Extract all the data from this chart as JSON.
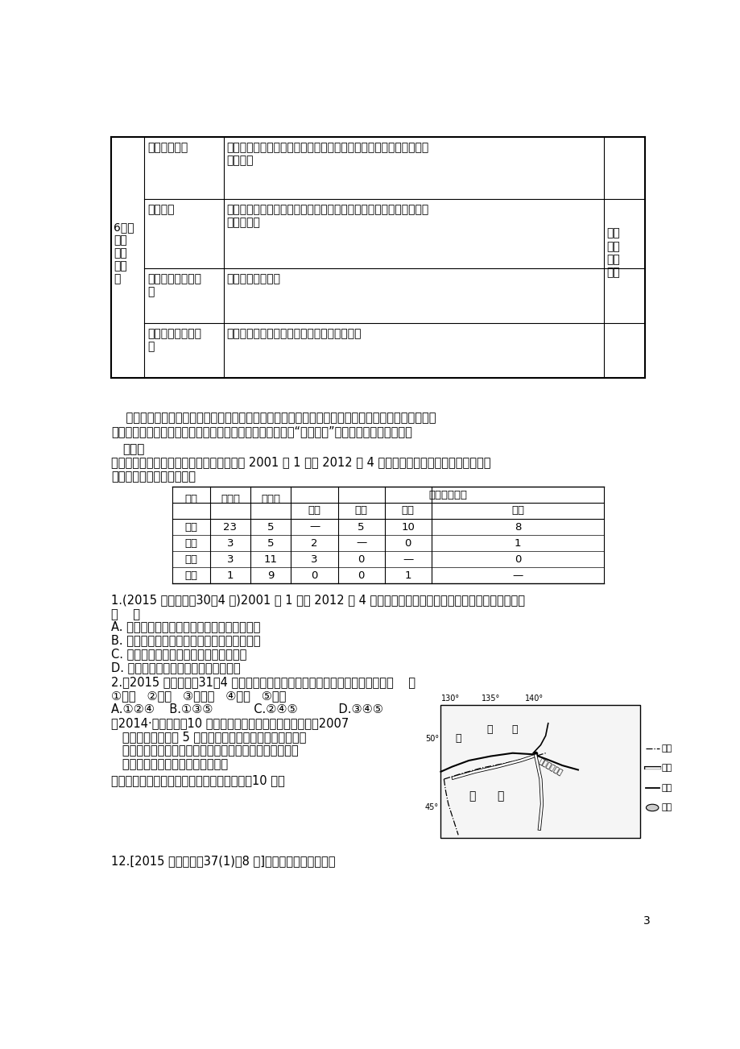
{
  "bg_color": "#ffffff",
  "page_number": "3",
  "top_table": {
    "rows": [
      {
        "col2": "经济结构单一",
        "col3": "经济发展过分依赖非可再生资源（本区主要资源），其他资源开发利\n用不充分"
      },
      {
        "col2": "资源枯竭",
        "col3": "不可再生资源，随着发展，资源枯竭，主导产业衰退，效益下滑，失\n业人员大增"
      },
      {
        "col2": "环境污染、生态破\n坏",
        "col3": "新兴产业不愿进驻"
      },
      {
        "col2": "用地紧张、交通拥\n挤",
        "col3": "企业效益下降，甚至出现产业转移、外迁现象"
      }
    ]
  },
  "paragraph1": "    资源型地区在长期开发过程中往往形成以某种资源为基础的主导产业，但伴随着资源枯竭，或替代品\n的冲击，如果不能及时调整发展方向，会导致区域的衰落。“矿竭城衰”已经成为世界性的课题。",
  "practice_label": "练习：",
  "practice_intro": "企业总部是企业决策和控制中心。下表表示 2001 年 1 月至 2012 年 4 月我国上市企业总部在四大区域间的\n迁移情况。完成下面两题。",
  "data_table": {
    "headers": [
      "地区",
      "迁入数",
      "迁出数",
      "东部",
      "中部",
      "西部",
      "东北"
    ],
    "span_header": "其中迁入来自",
    "rows": [
      [
        "东部",
        "23",
        "5",
        "—",
        "5",
        "10",
        "8"
      ],
      [
        "中部",
        "3",
        "5",
        "2",
        "—",
        "0",
        "1"
      ],
      [
        "西部",
        "3",
        "11",
        "3",
        "0",
        "—",
        "0"
      ],
      [
        "东北",
        "1",
        "9",
        "0",
        "0",
        "1",
        "—"
      ]
    ]
  },
  "q1": "1.(2015 安徽文综，30，4 分)2001 年 1 月至 2012 年 4 月，我国上市企业总部在四大区域间的迁移表现为\n（    ）",
  "q1_options": [
    "A. 东部地区上市企业总部主要向东北地区迁移",
    "B. 东部地区是上市企业总部迁移的主要目的地",
    "C. 中部地区上市企业总部的净迁出量最大",
    "D. 西部地区上市企业总部主要迁往中部"
  ],
  "q2": "2.（2015 安徽文综，31，4 分）下列因素中，影响我国企业总部布局的主要是（    ）",
  "q2_options_line1": "①原料   ②交通   ③劳动力   ④信息   ⑤政策",
  "q2_options_line2": "A.①②④    B.①③⑤           C.②④⑤           D.③④⑤",
  "q3_text_lines": [
    "（2014·海南地理，10 分）俄罗斯亚洲地区森林资源丰富，2007",
    "   年，中俄共同投资 5 亿美元在哈巴罗夫斯克建设了一座以",
    "   木材为原料的纸浆厂，产品主要销往我国。下图示意哈巴",
    "   罗夫斯克附近地区的铁路和河流。"
  ],
  "q3_question": "简述哈巴罗夫斯克建设纸浆厂的有利条件。（10 分）",
  "q4": "12.[2015 山东文综，37(1)，8 分]阅读材料，回答问题。"
}
